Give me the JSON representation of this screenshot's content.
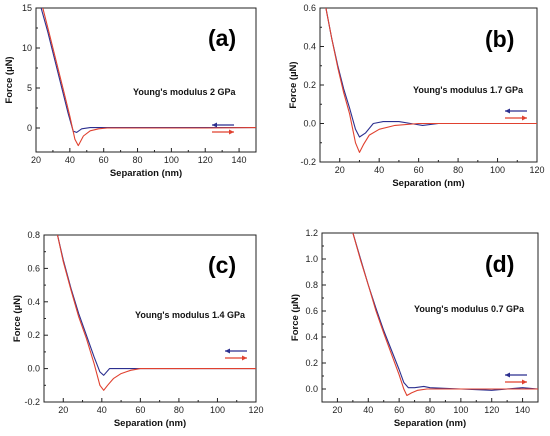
{
  "colors": {
    "approach": "#2b2f8f",
    "retract": "#e0412f"
  },
  "chart_data": [
    {
      "type": "line",
      "panel": "(a)",
      "annotation": "Young's modulus 2 GPa",
      "xlabel": "Separation (nm)",
      "ylabel": "Force (µN)",
      "xlim": [
        20,
        150
      ],
      "ylim": [
        -3,
        15
      ],
      "xticks": [
        20,
        40,
        60,
        80,
        100,
        120,
        140
      ],
      "yticks": [
        0,
        5,
        10,
        15
      ],
      "legend_arrows": [
        "left",
        "right"
      ],
      "series": [
        {
          "color": "#2b2f8f",
          "x": [
            23,
            27,
            31,
            35,
            39,
            42,
            44,
            47,
            52,
            60,
            80,
            100,
            120,
            150
          ],
          "y": [
            15,
            12,
            8.6,
            5.2,
            1.8,
            -0.4,
            -0.55,
            -0.1,
            0.05,
            0.05,
            0.05,
            0.05,
            0.05,
            0.05
          ]
        },
        {
          "color": "#e0412f",
          "x": [
            24,
            28,
            32,
            36,
            40,
            43,
            45,
            48,
            52,
            57,
            62,
            80,
            100,
            120,
            150
          ],
          "y": [
            15,
            11.7,
            8.3,
            4.9,
            1.5,
            -1.4,
            -2.2,
            -1.0,
            -0.35,
            -0.1,
            0.0,
            0.0,
            0.0,
            0.0,
            0.05
          ]
        }
      ]
    },
    {
      "type": "line",
      "panel": "(b)",
      "annotation": "Young's modulus 1.7 GPa",
      "xlabel": "Separation (nm)",
      "ylabel": "Force (µN)",
      "xlim": [
        10,
        120
      ],
      "ylim": [
        -0.2,
        0.6
      ],
      "xticks": [
        20,
        40,
        60,
        80,
        100,
        120
      ],
      "yticks": [
        -0.2,
        0.0,
        0.2,
        0.4,
        0.6
      ],
      "legend_arrows": [
        "left",
        "right"
      ],
      "series": [
        {
          "color": "#2b2f8f",
          "x": [
            13,
            16,
            19,
            22,
            25,
            28,
            30,
            33,
            37,
            42,
            50,
            56,
            62,
            70,
            90,
            120
          ],
          "y": [
            0.6,
            0.44,
            0.3,
            0.18,
            0.08,
            -0.03,
            -0.07,
            -0.05,
            0.0,
            0.01,
            0.01,
            0.0,
            -0.01,
            0.0,
            0.0,
            0.0
          ]
        },
        {
          "color": "#e0412f",
          "x": [
            13,
            16,
            19,
            22,
            25,
            28,
            30,
            32,
            35,
            40,
            48,
            60,
            80,
            100,
            120
          ],
          "y": [
            0.6,
            0.44,
            0.29,
            0.16,
            0.05,
            -0.1,
            -0.15,
            -0.11,
            -0.06,
            -0.03,
            -0.01,
            0.0,
            0.0,
            0.0,
            0.0
          ]
        }
      ]
    },
    {
      "type": "line",
      "panel": "(c)",
      "annotation": "Young's modulus 1.4 GPa",
      "xlabel": "Separation (nm)",
      "ylabel": "Force (µN)",
      "xlim": [
        10,
        120
      ],
      "ylim": [
        -0.2,
        0.8
      ],
      "xticks": [
        20,
        40,
        60,
        80,
        100,
        120
      ],
      "yticks": [
        -0.2,
        0.0,
        0.2,
        0.4,
        0.6,
        0.8
      ],
      "legend_arrows": [
        "left",
        "right"
      ],
      "series": [
        {
          "color": "#2b2f8f",
          "x": [
            17,
            20,
            24,
            28,
            32,
            36,
            39,
            41,
            44,
            50,
            60,
            80,
            100,
            120
          ],
          "y": [
            0.8,
            0.65,
            0.48,
            0.33,
            0.2,
            0.07,
            -0.02,
            -0.04,
            0.0,
            0.0,
            0.0,
            0.0,
            0.0,
            0.0
          ]
        },
        {
          "color": "#e0412f",
          "x": [
            17,
            20,
            24,
            28,
            32,
            36,
            39,
            41,
            43,
            46,
            50,
            55,
            60,
            80,
            100,
            120
          ],
          "y": [
            0.8,
            0.64,
            0.47,
            0.31,
            0.18,
            0.03,
            -0.1,
            -0.13,
            -0.1,
            -0.06,
            -0.03,
            -0.01,
            0.0,
            0.0,
            0.0,
            0.0
          ]
        }
      ]
    },
    {
      "type": "line",
      "panel": "(d)",
      "annotation": "Young's modulus 0.7 GPa",
      "xlabel": "Separation (nm)",
      "ylabel": "Force (µN)",
      "xlim": [
        10,
        150
      ],
      "ylim": [
        -0.1,
        1.2
      ],
      "xticks": [
        20,
        40,
        60,
        80,
        100,
        120,
        140
      ],
      "yticks": [
        0.0,
        0.2,
        0.4,
        0.6,
        0.8,
        1.0,
        1.2
      ],
      "legend_arrows": [
        "left",
        "right"
      ],
      "series": [
        {
          "color": "#2b2f8f",
          "x": [
            30,
            35,
            40,
            45,
            50,
            55,
            60,
            63,
            66,
            70,
            76,
            80,
            100,
            120,
            140,
            150
          ],
          "y": [
            1.2,
            1.0,
            0.8,
            0.62,
            0.45,
            0.3,
            0.15,
            0.05,
            0.01,
            0.01,
            0.02,
            0.01,
            0.0,
            -0.01,
            0.01,
            0.0
          ]
        },
        {
          "color": "#e0412f",
          "x": [
            30,
            35,
            40,
            45,
            50,
            55,
            60,
            63,
            65,
            68,
            72,
            78,
            90,
            110,
            130,
            150
          ],
          "y": [
            1.2,
            0.99,
            0.8,
            0.6,
            0.43,
            0.27,
            0.11,
            0.0,
            -0.05,
            -0.03,
            -0.01,
            0.0,
            0.0,
            0.0,
            0.0,
            0.0
          ]
        }
      ]
    }
  ]
}
